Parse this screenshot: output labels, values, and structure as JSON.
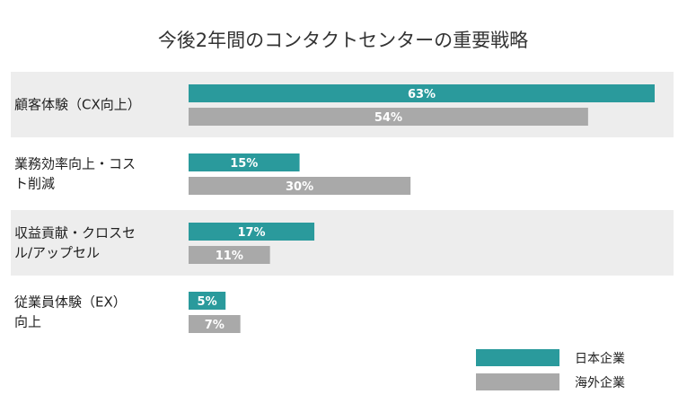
{
  "chart_data": {
    "type": "bar",
    "orientation": "horizontal",
    "title": "今後2年間のコンタクトセンターの重要戦略",
    "categories": [
      [
        "顧客体験（CX向上）"
      ],
      [
        "業務効率向上・コス",
        "ト削減"
      ],
      [
        "収益貢献・クロスセ",
        "ル/アップセル"
      ],
      [
        "従業員体験（EX）",
        "向上"
      ]
    ],
    "series": [
      {
        "name": "日本企業",
        "values": [
          63,
          15,
          17,
          5
        ],
        "labels": [
          "63%",
          "15%",
          "17%",
          "5%"
        ],
        "color": "#2a9a9c"
      },
      {
        "name": "海外企業",
        "values": [
          54,
          30,
          11,
          7
        ],
        "labels": [
          "54%",
          "30%",
          "11%",
          "7%"
        ],
        "color": "#a9a9a9"
      }
    ],
    "xlim": [
      0,
      63
    ],
    "legend_position": "bottom-right",
    "band_colors": [
      "#ededed",
      "#ffffff"
    ]
  }
}
